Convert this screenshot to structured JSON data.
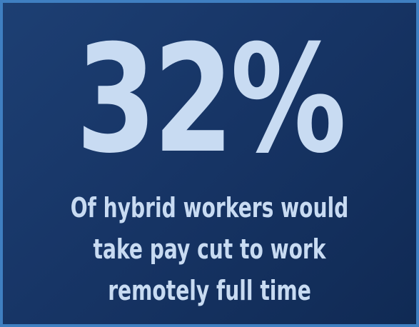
{
  "stat": {
    "value": "32%"
  },
  "caption": {
    "lines": [
      "Of hybrid workers would",
      "take pay cut to work",
      "remotely full time"
    ]
  },
  "colors": {
    "background": "#173566",
    "border": "#3f7fc1",
    "text": "#c8dbf2"
  }
}
